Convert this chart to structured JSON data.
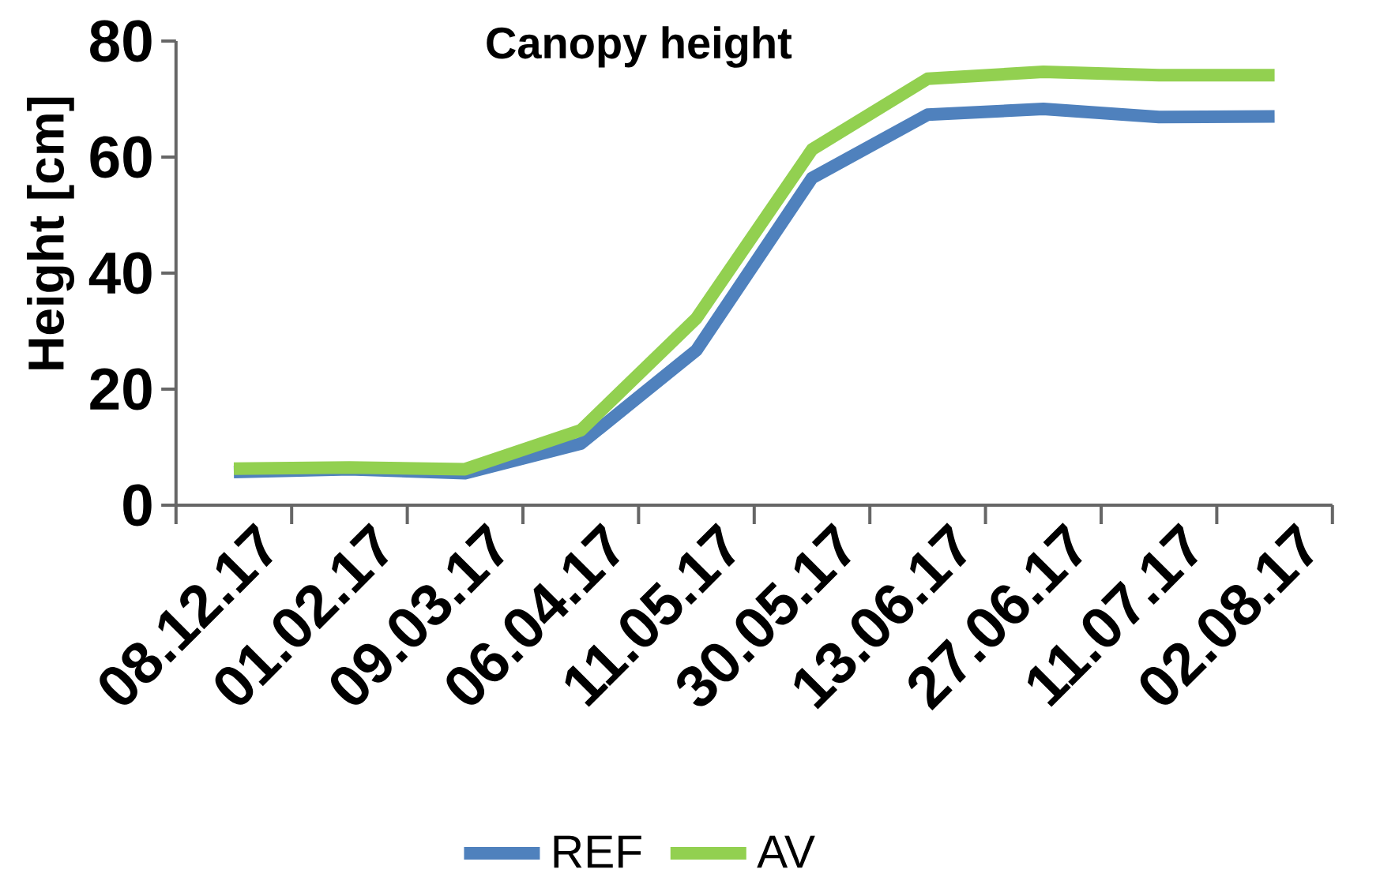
{
  "chart_data": {
    "type": "line",
    "title": "Canopy height",
    "ylabel": "Height [cm]",
    "categories": [
      "08.12.17",
      "01.02.17",
      "09.03.17",
      "06.04.17",
      "11.05.17",
      "30.05.17",
      "13.06.17",
      "27.06.17",
      "11.07.17",
      "02.08.17"
    ],
    "series": [
      {
        "name": "REF",
        "color": "#4f81bd",
        "values": [
          5.7,
          6.2,
          5.5,
          10.6,
          26.7,
          56.4,
          67.3,
          68.3,
          66.9,
          67.0
        ]
      },
      {
        "name": "AV",
        "color": "#92d050",
        "values": [
          6.3,
          6.5,
          6.2,
          12.9,
          32.2,
          61.3,
          73.5,
          74.7,
          74.1,
          74.1
        ]
      }
    ],
    "ylim": [
      0,
      80
    ],
    "yticks": [
      0,
      20,
      40,
      60,
      80
    ],
    "legend": "bottom"
  }
}
